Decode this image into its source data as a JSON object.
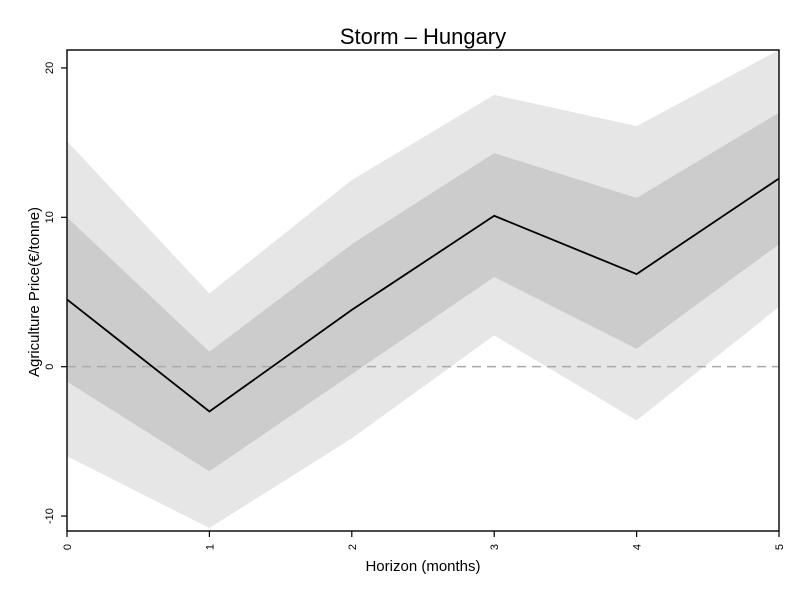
{
  "chart_data": {
    "type": "line",
    "title": "Storm – Hungary",
    "xlabel": "Horizon (months)",
    "ylabel": "Agriculture Price(€/tonne)",
    "x": [
      0,
      1,
      2,
      3,
      4,
      5
    ],
    "xticks": [
      "0",
      "1",
      "2",
      "3",
      "4",
      "5"
    ],
    "yticks": [
      "-10",
      "0",
      "10",
      "20"
    ],
    "ytick_values": [
      -10,
      0,
      10,
      20
    ],
    "xlim": [
      0,
      5
    ],
    "ylim": [
      -11,
      21.2
    ],
    "grid": false,
    "reference_line": {
      "y": 0,
      "style": "dashed"
    },
    "series": [
      {
        "role": "estimate",
        "values": [
          4.5,
          -3.0,
          3.8,
          10.1,
          6.2,
          12.6
        ]
      }
    ],
    "bands": [
      {
        "role": "outer",
        "lower": [
          -6.0,
          -10.8,
          -4.8,
          2.1,
          -3.6,
          4.0
        ],
        "upper": [
          15.1,
          4.9,
          12.5,
          18.2,
          16.1,
          21.2
        ]
      },
      {
        "role": "inner",
        "lower": [
          -1.0,
          -7.0,
          -0.5,
          6.0,
          1.2,
          8.2
        ],
        "upper": [
          10.0,
          1.0,
          8.2,
          14.3,
          11.3,
          17.0
        ]
      }
    ],
    "colors": {
      "outer_band": "#e6e6e6",
      "inner_band": "#cccccc",
      "line": "#000000",
      "reference": "#aaaaaa"
    }
  }
}
